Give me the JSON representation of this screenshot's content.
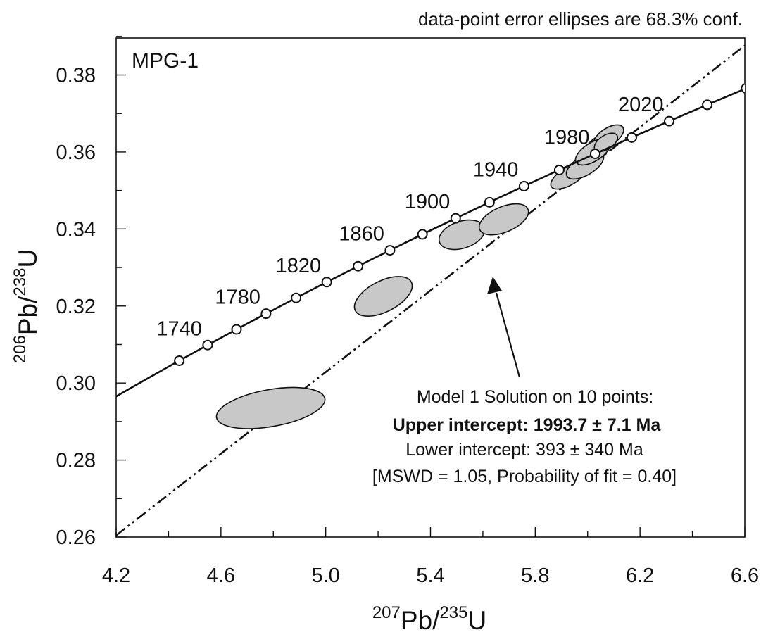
{
  "chart_data": {
    "type": "scatter",
    "subtype": "U-Pb concordia diagram",
    "note": "data-point error ellipses are 68.3% conf.",
    "sample_label": "MPG-1",
    "xlabel": {
      "sup": "207",
      "text": "Pb/",
      "sup2": "235",
      "text2": "U"
    },
    "ylabel": {
      "sup": "206",
      "text": "Pb/",
      "sup2": "238",
      "text2": "U"
    },
    "xlim": [
      4.2,
      6.6
    ],
    "ylim": [
      0.26,
      0.3896
    ],
    "x_ticks": [
      "4.2",
      "4.6",
      "5.0",
      "5.4",
      "5.8",
      "6.2",
      "6.6"
    ],
    "y_ticks": [
      "0.26",
      "0.28",
      "0.30",
      "0.32",
      "0.34",
      "0.36",
      "0.38"
    ],
    "concordia_ages_ma": [
      1720,
      1740,
      1760,
      1780,
      1800,
      1820,
      1840,
      1860,
      1880,
      1900,
      1920,
      1940,
      1960,
      1980,
      2000,
      2020,
      2040,
      2060
    ],
    "concordia_labels": [
      {
        "age": 1740,
        "text": "1740"
      },
      {
        "age": 1780,
        "text": "1780"
      },
      {
        "age": 1820,
        "text": "1820"
      },
      {
        "age": 1860,
        "text": "1860"
      },
      {
        "age": 1900,
        "text": "1900"
      },
      {
        "age": 1940,
        "text": "1940"
      },
      {
        "age": 1980,
        "text": "1980"
      },
      {
        "age": 2020,
        "text": "2020"
      }
    ],
    "ellipses": [
      {
        "x": 4.79,
        "y": 0.2935,
        "rx": 0.21,
        "ry": 0.0048,
        "angle_deg": -10
      },
      {
        "x": 5.22,
        "y": 0.3225,
        "rx": 0.12,
        "ry": 0.004,
        "angle_deg": -27
      },
      {
        "x": 5.52,
        "y": 0.3385,
        "rx": 0.09,
        "ry": 0.0035,
        "angle_deg": -18
      },
      {
        "x": 5.68,
        "y": 0.3425,
        "rx": 0.1,
        "ry": 0.0033,
        "angle_deg": -23
      },
      {
        "x": 5.93,
        "y": 0.3538,
        "rx": 0.08,
        "ry": 0.0023,
        "angle_deg": -31
      },
      {
        "x": 5.99,
        "y": 0.3565,
        "rx": 0.08,
        "ry": 0.0025,
        "angle_deg": -31
      },
      {
        "x": 6.05,
        "y": 0.362,
        "rx": 0.07,
        "ry": 0.0022,
        "angle_deg": -33
      },
      {
        "x": 6.08,
        "y": 0.364,
        "rx": 0.065,
        "ry": 0.0022,
        "angle_deg": -33
      },
      {
        "x": 6.02,
        "y": 0.36,
        "rx": 0.075,
        "ry": 0.0024,
        "angle_deg": -32
      },
      {
        "x": 6.07,
        "y": 0.3625,
        "rx": 0.05,
        "ry": 0.0018,
        "angle_deg": -33
      }
    ],
    "discordia": {
      "lower_age_ma": 393,
      "upper_age_ma": 1993.7
    },
    "result": {
      "line1": "Model 1 Solution on 10 points:",
      "line2": "Upper intercept: 1993.7 ± 7.1 Ma",
      "line3": "Lower intercept: 393 ± 340 Ma",
      "line4": "[MSWD = 1.05, Probability of fit = 0.40]"
    },
    "grid": false,
    "colors": {
      "ellipse_fill": "#c8c8c8",
      "stroke": "#111111",
      "background": "#ffffff"
    }
  }
}
